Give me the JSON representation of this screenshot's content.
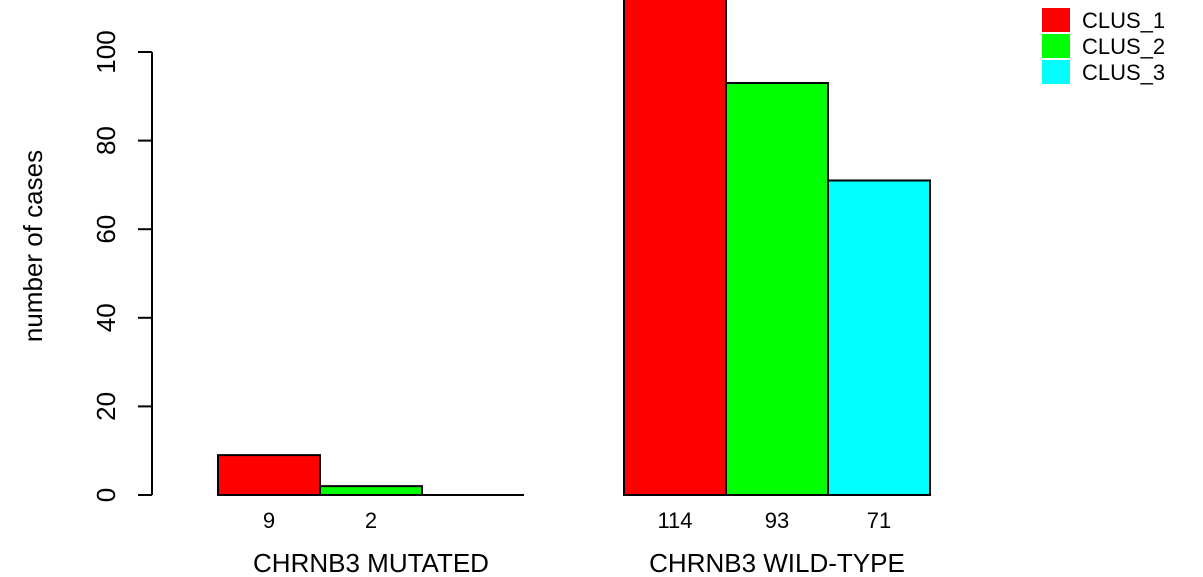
{
  "chart_data": {
    "type": "bar",
    "ylabel": "number of cases",
    "ylim": [
      0,
      110
    ],
    "yticks": [
      0,
      20,
      40,
      60,
      80,
      100
    ],
    "groups": [
      {
        "label": "CHRNB3 MUTATED",
        "values": [
          9,
          2,
          0
        ],
        "labels": [
          "9",
          "2",
          ""
        ]
      },
      {
        "label": "CHRNB3 WILD-TYPE",
        "values": [
          114,
          93,
          71
        ],
        "labels": [
          "114",
          "93",
          "71"
        ]
      }
    ],
    "series": [
      {
        "name": "CLUS_1",
        "color": "#ff0000"
      },
      {
        "name": "CLUS_2",
        "color": "#00ff00"
      },
      {
        "name": "CLUS_3",
        "color": "#00ffff"
      }
    ],
    "legend_position": "top-right",
    "grid": false
  }
}
